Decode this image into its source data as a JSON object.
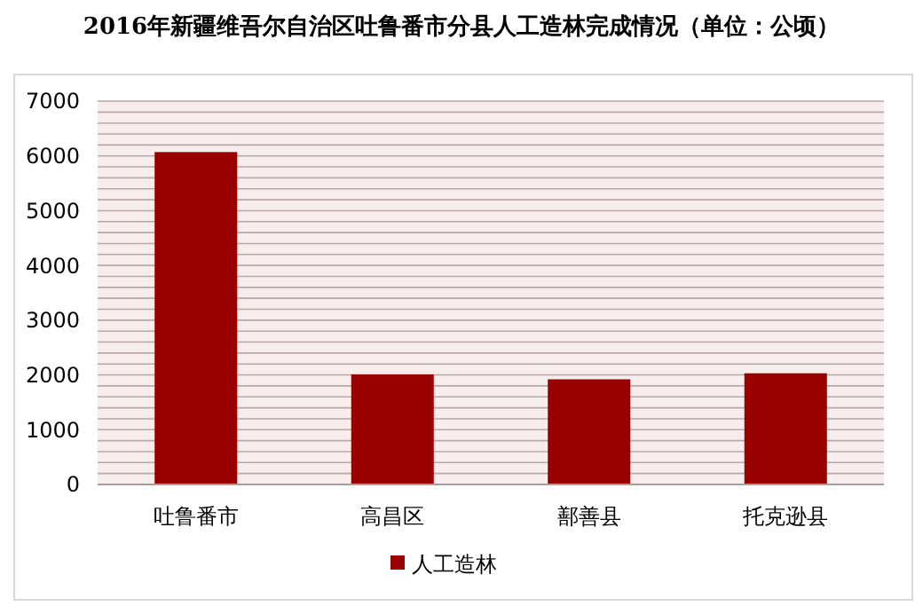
{
  "chart_data": {
    "type": "bar",
    "title": "2016年新疆维吾尔自治区吐鲁番市分县人工造林完成情况（单位：公顷）",
    "categories": [
      "吐鲁番市",
      "高昌区",
      "鄯善县",
      "托克逊县"
    ],
    "series": [
      {
        "name": "人工造林",
        "color": "#990000",
        "values": [
          6070,
          2010,
          1920,
          2030
        ]
      }
    ],
    "ylim": [
      0,
      7000
    ],
    "yticks": [
      0,
      {
        "value": 200,
        "label": null
      },
      {
        "value": 400,
        "label": null
      },
      {
        "value": 600,
        "label": null
      },
      {
        "value": 800,
        "label": null
      },
      1000,
      {
        "value": 1200,
        "label": null
      },
      {
        "value": 1400,
        "label": null
      },
      {
        "value": 1600,
        "label": null
      },
      {
        "value": 1800,
        "label": null
      },
      2000,
      {
        "value": 2200,
        "label": null
      },
      {
        "value": 2400,
        "label": null
      },
      {
        "value": 2600,
        "label": null
      },
      {
        "value": 2800,
        "label": null
      },
      3000,
      {
        "value": 3200,
        "label": null
      },
      {
        "value": 3400,
        "label": null
      },
      {
        "value": 3600,
        "label": null
      },
      {
        "value": 3800,
        "label": null
      },
      4000,
      {
        "value": 4200,
        "label": null
      },
      {
        "value": 4400,
        "label": null
      },
      {
        "value": 4600,
        "label": null
      },
      {
        "value": 4800,
        "label": null
      },
      5000,
      {
        "value": 5200,
        "label": null
      },
      {
        "value": 5400,
        "label": null
      },
      {
        "value": 5600,
        "label": null
      },
      {
        "value": 5800,
        "label": null
      },
      6000,
      {
        "value": 6200,
        "label": null
      },
      {
        "value": 6400,
        "label": null
      },
      {
        "value": 6600,
        "label": null
      },
      {
        "value": 6800,
        "label": null
      },
      7000
    ],
    "grid": "y",
    "legend": "bottom"
  }
}
